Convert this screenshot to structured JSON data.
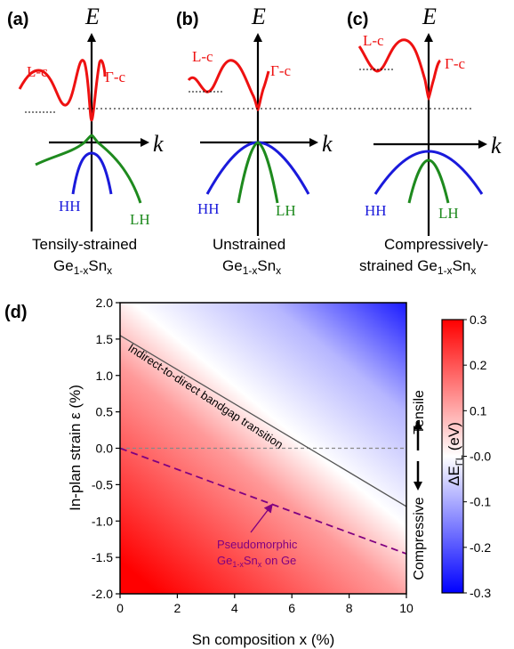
{
  "panels": {
    "a": {
      "tag": "(a)",
      "caption_line1": "Tensily-strained",
      "caption_line2": "Ge",
      "caption_sub": "1-x",
      "caption_mid": "Sn",
      "caption_sub2": "x"
    },
    "b": {
      "tag": "(b)",
      "caption_line1": "Unstrained",
      "caption_line2": "Ge",
      "caption_sub": "1-x",
      "caption_mid": "Sn",
      "caption_sub2": "x"
    },
    "c": {
      "tag": "(c)",
      "caption_line1": "Compressively-",
      "caption_line2": "strained Ge",
      "caption_sub": "1-x",
      "caption_mid": "Sn",
      "caption_sub2": "x"
    }
  },
  "band_labels": {
    "energy_axis": "E",
    "k_axis": "k",
    "l_valley": "L-c",
    "gamma_valley": "Γ-c",
    "heavy_hole": "HH",
    "light_hole": "LH"
  },
  "colors": {
    "conduction": "#ee1111",
    "heavy_hole": "#1a1adb",
    "light_hole": "#1e8a1e",
    "pseudo_line": "#800080",
    "transition_line": "#555555"
  },
  "panel_d": {
    "tag": "(d)",
    "transition_label": "Indirect-to-direct bandgap transition",
    "pseudo_label_line1": "Pseudomorphic",
    "pseudo_label_ge": "Ge",
    "pseudo_label_sub1": "1-x",
    "pseudo_label_sn": "Sn",
    "pseudo_label_sub2": "x",
    "pseudo_label_tail": " on Ge",
    "tensile_label": "Tensile",
    "compressive_label": "Compressive",
    "colorbar_label": "ΔE",
    "colorbar_label_sub": "ΓL",
    "colorbar_label_unit": " (eV)"
  },
  "chart_data": {
    "type": "heatmap",
    "xlabel": "Sn composition x (%)",
    "ylabel": "In-plan strain ε (%)",
    "xlim": [
      0,
      10
    ],
    "ylim": [
      -2.0,
      2.0
    ],
    "xticks": [
      "0",
      "2",
      "4",
      "6",
      "8",
      "10"
    ],
    "yticks": [
      "2.0",
      "1.5",
      "1.0",
      "0.5",
      "0.0",
      "-0.5",
      "-1.0",
      "-1.5",
      "-2.0"
    ],
    "colorbar_range": [
      -0.3,
      0.3
    ],
    "colorbar_ticks": [
      "0.3",
      "0.2",
      "0.1",
      "-0.0",
      "-0.1",
      "-0.2",
      "-0.3"
    ],
    "transition_line": {
      "x": [
        0,
        10
      ],
      "y": [
        1.55,
        -0.8
      ]
    },
    "pseudomorphic_line": {
      "x": [
        0,
        10
      ],
      "y": [
        0.0,
        -1.45
      ]
    },
    "zero_strain_line": {
      "y": 0.0
    }
  }
}
